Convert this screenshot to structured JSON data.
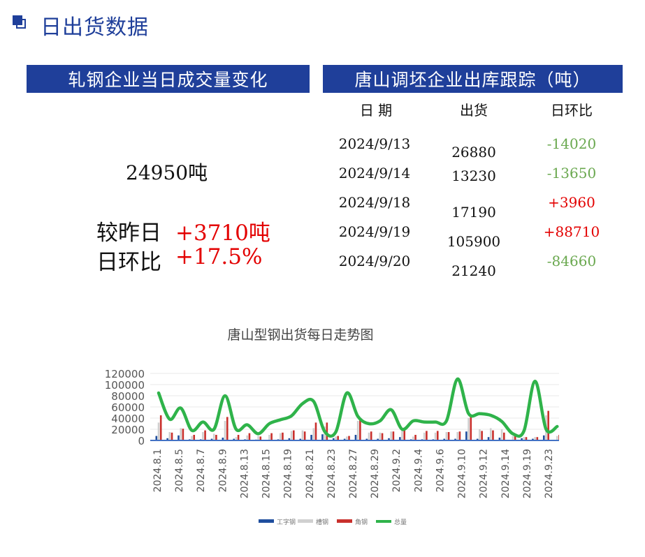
{
  "page": {
    "title": "日出货数据"
  },
  "left_panel": {
    "banner": "轧钢企业当日成交量变化",
    "daily_volume": "24950吨",
    "vs_yesterday_label": "较昨日",
    "vs_yesterday_value": "+3710吨",
    "dod_label": "日环比",
    "dod_value": "+17.5%"
  },
  "right_panel": {
    "banner": "唐山调坯企业出库跟踪（吨）",
    "headers": {
      "date": "日 期",
      "shipment": "出货",
      "dod": "日环比"
    },
    "rows": [
      {
        "date": "2024/9/13",
        "shipment": "26880",
        "dod": "-14020",
        "trend": "down"
      },
      {
        "date": "2024/9/14",
        "shipment": "13230",
        "dod": "-13650",
        "trend": "down"
      },
      {
        "date": "2024/9/18",
        "shipment": "17190",
        "dod": "+3960",
        "trend": "up"
      },
      {
        "date": "2024/9/19",
        "shipment": "105900",
        "dod": "+88710",
        "trend": "up"
      },
      {
        "date": "2024/9/20",
        "shipment": "21240",
        "dod": "-84660",
        "trend": "down"
      }
    ]
  },
  "chart_data": {
    "type": "bar",
    "title": "唐山型钢出货每日走势图",
    "ylim": [
      0,
      120000
    ],
    "y_ticks": [
      "0",
      "20000",
      "40000",
      "60000",
      "80000",
      "100000",
      "120000"
    ],
    "x_tick_labels": [
      "2024.8.1",
      "2024.8.5",
      "2024.8.7",
      "2024.8.9",
      "2024.8.13",
      "2024.8.15",
      "2024.8.19",
      "2024.8.21",
      "2024.8.23",
      "2024.8.27",
      "2024.8.29",
      "2024.9.2",
      "2024.9.4",
      "2024.9.6",
      "2024.9.10",
      "2024.9.12",
      "2024.9.14",
      "2024.9.19",
      "2024.9.23"
    ],
    "n_points": 37,
    "series": [
      {
        "name": "工字钢",
        "type": "bar",
        "color": "#1f4e9e",
        "values": [
          8000,
          4000,
          9000,
          2000,
          2000,
          3000,
          5000,
          3000,
          2000,
          1500,
          1000,
          2000,
          4000,
          3000,
          10000,
          11000,
          4000,
          3000,
          10000,
          3000,
          3000,
          4000,
          6000,
          2000,
          2000,
          2000,
          3000,
          3000,
          16000,
          3000,
          6000,
          5000,
          1000,
          4000,
          3000,
          9000,
          1000
        ]
      },
      {
        "name": "槽钢",
        "type": "bar",
        "color": "#d0d0d0",
        "values": [
          32000,
          15000,
          22000,
          8000,
          15000,
          12000,
          35000,
          6000,
          9000,
          8000,
          10000,
          13000,
          17000,
          18000,
          22000,
          25000,
          7000,
          7000,
          35000,
          14000,
          14000,
          16000,
          22000,
          7000,
          14000,
          14000,
          15000,
          15000,
          40000,
          20000,
          22000,
          20000,
          8000,
          6000,
          6000,
          45000,
          8000
        ]
      },
      {
        "name": "角钢",
        "type": "bar",
        "color": "#c9302c",
        "values": [
          45000,
          14000,
          21000,
          10000,
          18000,
          10000,
          42000,
          10000,
          13000,
          7000,
          13000,
          14000,
          18000,
          16000,
          32000,
          32000,
          8000,
          8000,
          38000,
          16000,
          13000,
          16000,
          23000,
          10000,
          17000,
          17000,
          15000,
          16000,
          46000,
          17000,
          18000,
          14000,
          9000,
          6000,
          6000,
          53000,
          10000
        ]
      },
      {
        "name": "总量",
        "type": "line",
        "color": "#2fb34a",
        "values": [
          85000,
          38000,
          58000,
          18000,
          33000,
          20000,
          80000,
          20000,
          28000,
          12000,
          30000,
          37000,
          44000,
          66000,
          70000,
          16000,
          15000,
          85000,
          43000,
          30000,
          35000,
          55000,
          20000,
          35000,
          33000,
          33000,
          35000,
          110000,
          48000,
          48000,
          45000,
          34000,
          12000,
          17000,
          106000,
          20000,
          25000
        ]
      }
    ],
    "legend_position": "bottom"
  }
}
